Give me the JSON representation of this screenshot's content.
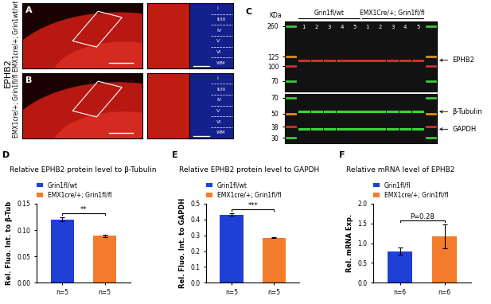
{
  "panels": {
    "stain": "EPHB2",
    "layers": [
      "I",
      "II/III",
      "IV",
      "V",
      "VI",
      "WM"
    ],
    "A": {
      "letter": "A",
      "genotype": "EMX1cre/+; Grin1wt/wt"
    },
    "B": {
      "letter": "B",
      "genotype": "EMX1cre/+; Grin1fl/fl"
    },
    "C": {
      "letter": "C",
      "unit": "KDa",
      "groups": [
        {
          "name": "Grin1fl/wt",
          "lanes": [
            "1",
            "2",
            "3",
            "4",
            "5"
          ]
        },
        {
          "name": "EMX1Cre/+; Grin1fl/fl",
          "lanes": [
            "1",
            "2",
            "3",
            "4",
            "5"
          ]
        }
      ],
      "blots": [
        {
          "ylim": [
            55,
            290
          ],
          "yticks": [
            260,
            125,
            100,
            70
          ],
          "bands": [
            {
              "label": "EPHB2",
              "kDa": 115,
              "color": "#c83228"
            }
          ]
        },
        {
          "ylim": [
            27,
            75
          ],
          "yticks": [
            70,
            50,
            38,
            30
          ],
          "bands": [
            {
              "label": "β-Tubulin",
              "kDa": 52,
              "color": "#3cd23c"
            },
            {
              "label": "GAPDH",
              "kDa": 36,
              "color": "#3cd23c"
            }
          ]
        }
      ]
    }
  },
  "chart_data": [
    {
      "panel": "D",
      "type": "bar",
      "title": "Relative EPHB2 protein level to β-Tubulin",
      "ylabel": "Rel. Fluo. Int. to β-Tub",
      "categories": [
        "n=5",
        "n=5"
      ],
      "series": [
        {
          "name": "Grin1fl/wt",
          "color": "#1f3fd6",
          "values": [
            0.12,
            null
          ],
          "errors": [
            0.004,
            null
          ]
        },
        {
          "name": "EMX1cre/+; Grin1fl/fl",
          "color": "#f47c2c",
          "values": [
            null,
            0.089
          ],
          "errors": [
            null,
            0.002
          ]
        }
      ],
      "ylim": [
        0,
        0.15
      ],
      "yticks": [
        {
          "value": 0,
          "label": "0.00"
        },
        0.05,
        {
          "value": 0.1,
          "label": "0.10"
        },
        0.15
      ],
      "legend": "lower left",
      "annotation": "**"
    },
    {
      "panel": "E",
      "type": "bar",
      "title": "Relative EPHB2 protein level to GAPDH",
      "ylabel": "Rel. Fluo. Int. to GAPDH",
      "categories": [
        "n=5",
        "n=5"
      ],
      "series": [
        {
          "name": "Grin1fl/wt",
          "color": "#1f3fd6",
          "values": [
            0.43,
            null
          ],
          "errors": [
            0.007,
            null
          ]
        },
        {
          "name": "EMX1cre/+; Grin1fl/fl",
          "color": "#f47c2c",
          "values": [
            null,
            0.285
          ],
          "errors": [
            null,
            0.003
          ]
        }
      ],
      "ylim": [
        0,
        0.5
      ],
      "yticks": [
        {
          "value": 0,
          "label": "0.0"
        },
        0.1,
        0.2,
        0.3,
        0.4,
        0.5
      ],
      "legend": "lower left",
      "annotation": "***"
    },
    {
      "panel": "F",
      "type": "bar",
      "title": "Relative mRNA level of EPHB2",
      "ylabel": "Rel. mRNA Exp.",
      "categories": [
        "n=6",
        "n=6"
      ],
      "series": [
        {
          "name": "Grin1fl/fl",
          "color": "#1f3fd6",
          "values": [
            0.8,
            null
          ],
          "errors": [
            0.1,
            null
          ]
        },
        {
          "name": "EMX1cre/+; Grin1fl/fl",
          "color": "#f47c2c",
          "values": [
            null,
            1.18
          ],
          "errors": [
            null,
            0.3
          ]
        }
      ],
      "ylim": [
        0,
        2.0
      ],
      "yticks": [
        {
          "value": 0,
          "label": "0.0"
        },
        0.5,
        {
          "value": 1,
          "label": "1.0"
        },
        1.5,
        {
          "value": 2,
          "label": "2.0"
        }
      ],
      "legend": "lower left",
      "annotation": "P=0.28"
    }
  ]
}
